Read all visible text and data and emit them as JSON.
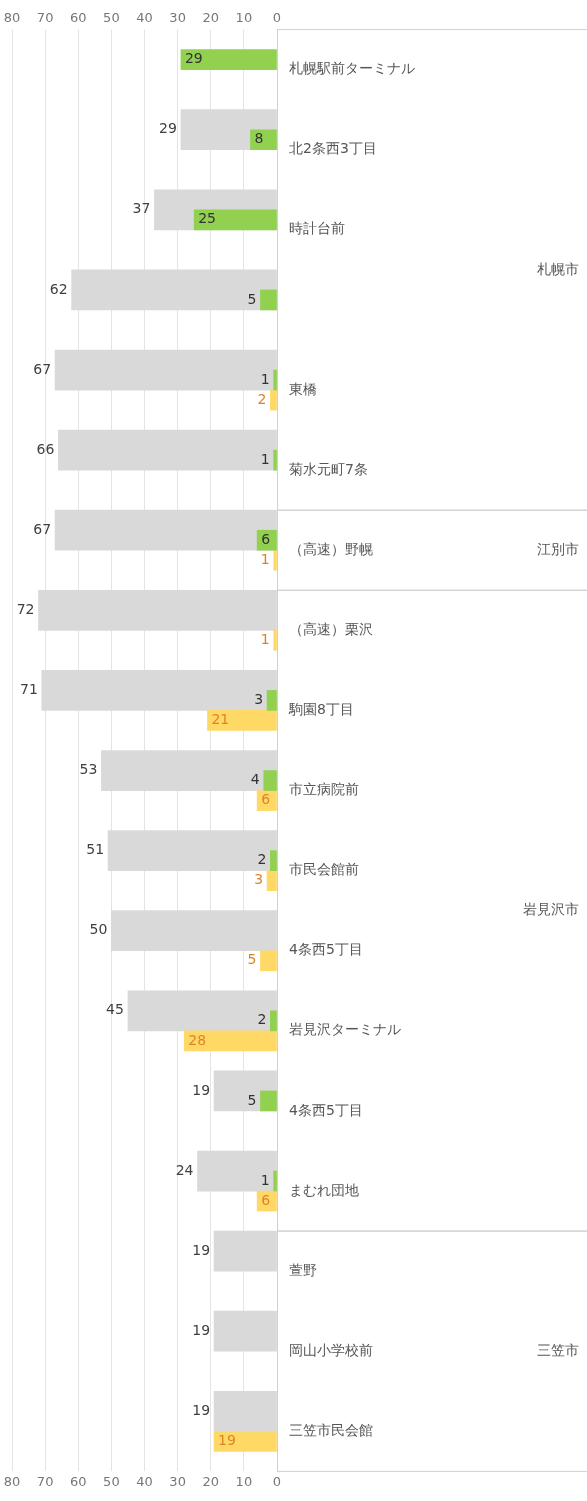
{
  "chart_data": {
    "type": "bar",
    "orientation": "horizontal",
    "categories": [
      "札幌駅前ターミナル",
      "北2条西3丁目",
      "時計台前",
      null,
      "東橋",
      "菊水元町7条",
      "（高速）野幌",
      "（高速）栗沢",
      "駒園8丁目",
      "市立病院前",
      "市民会館前",
      "4条西5丁目",
      "岩見沢ターミナル",
      "4条西5丁目",
      "まむれ団地",
      "萱野",
      "岡山小学校前",
      "三笠市民会館"
    ],
    "series": [
      {
        "color": "#d9d9d9",
        "values": [
          null,
          29,
          37,
          62,
          67,
          66,
          67,
          72,
          71,
          53,
          51,
          50,
          45,
          19,
          24,
          19,
          19,
          19
        ]
      },
      {
        "color": "#92d050",
        "values": [
          29,
          8,
          25,
          5,
          1,
          1,
          6,
          null,
          3,
          4,
          2,
          null,
          2,
          5,
          1,
          null,
          null,
          null
        ]
      },
      {
        "color": "#ffd966",
        "values": [
          null,
          null,
          null,
          null,
          2,
          null,
          1,
          1,
          21,
          6,
          3,
          5,
          28,
          null,
          6,
          null,
          null,
          19
        ]
      }
    ],
    "xlim": [
      80,
      0
    ],
    "xticks": [
      0,
      10,
      20,
      30,
      40,
      50,
      60,
      70,
      80
    ],
    "x2lim": [
      80,
      0
    ],
    "x2ticks": [
      0,
      10,
      20,
      30,
      40,
      50,
      60,
      70,
      80
    ],
    "annotations": [
      "札幌市",
      "江別市",
      "岩見沢市",
      "三笠市"
    ],
    "data_labels": true,
    "grid": "x",
    "legend": false
  }
}
